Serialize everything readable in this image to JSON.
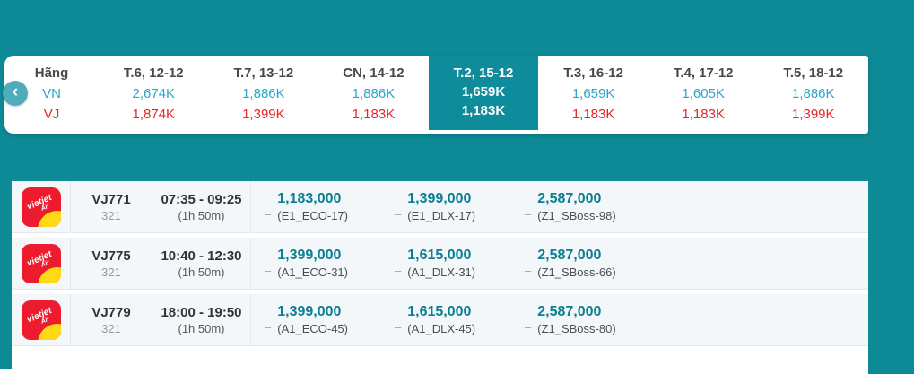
{
  "colors": {
    "background_teal": "#0d8a96",
    "selected_column_teal": "#0f8c9c",
    "vn_price_blue": "#2aa6c9",
    "vj_price_red": "#e7252b",
    "fare_price_teal": "#0b7e91",
    "vietjet_logo_red": "#ec1b2d",
    "vietjet_logo_yellow": "#ffd816"
  },
  "date_strip": {
    "back_icon": "‹",
    "header_label": "Hãng",
    "airlines": [
      "VN",
      "VJ"
    ],
    "columns": [
      {
        "date": "T.6, 12-12",
        "vn": "2,674K",
        "vj": "1,874K",
        "selected": false
      },
      {
        "date": "T.7, 13-12",
        "vn": "1,886K",
        "vj": "1,399K",
        "selected": false
      },
      {
        "date": "CN, 14-12",
        "vn": "1,886K",
        "vj": "1,183K",
        "selected": false
      },
      {
        "date": "T.2, 15-12",
        "vn": "1,659K",
        "vj": "1,183K",
        "selected": true
      },
      {
        "date": "T.3, 16-12",
        "vn": "1,659K",
        "vj": "1,183K",
        "selected": false
      },
      {
        "date": "T.4, 17-12",
        "vn": "1,605K",
        "vj": "1,183K",
        "selected": false
      },
      {
        "date": "T.5, 18-12",
        "vn": "1,886K",
        "vj": "1,399K",
        "selected": false
      }
    ]
  },
  "logo": {
    "brand": "vietjet",
    "sub": "Air"
  },
  "fare_dash": "–",
  "flights": [
    {
      "flight_no": "VJ771",
      "aircraft": "321",
      "time": "07:35 - 09:25",
      "duration": "(1h 50m)",
      "fares": [
        {
          "price": "1,183,000",
          "class": "(E1_ECO-17)"
        },
        {
          "price": "1,399,000",
          "class": "(E1_DLX-17)"
        },
        {
          "price": "2,587,000",
          "class": "(Z1_SBoss-98)"
        }
      ]
    },
    {
      "flight_no": "VJ775",
      "aircraft": "321",
      "time": "10:40 - 12:30",
      "duration": "(1h 50m)",
      "fares": [
        {
          "price": "1,399,000",
          "class": "(A1_ECO-31)"
        },
        {
          "price": "1,615,000",
          "class": "(A1_DLX-31)"
        },
        {
          "price": "2,587,000",
          "class": "(Z1_SBoss-66)"
        }
      ]
    },
    {
      "flight_no": "VJ779",
      "aircraft": "321",
      "time": "18:00 - 19:50",
      "duration": "(1h 50m)",
      "fares": [
        {
          "price": "1,399,000",
          "class": "(A1_ECO-45)"
        },
        {
          "price": "1,615,000",
          "class": "(A1_DLX-45)"
        },
        {
          "price": "2,587,000",
          "class": "(Z1_SBoss-80)"
        }
      ]
    }
  ]
}
